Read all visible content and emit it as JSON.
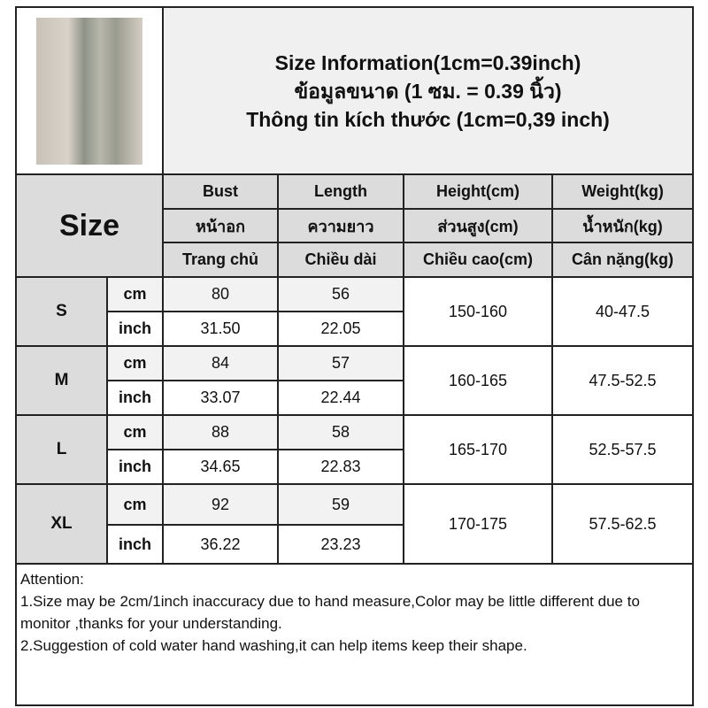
{
  "title_lines": [
    "Size Information(1cm=0.39inch)",
    "ข้อมูลขนาด (1 ซม. = 0.39 นิ้ว)",
    "Thông tin kích thước (1cm=0,39 inch)"
  ],
  "size_label": "Size",
  "headers": [
    [
      "Bust",
      "Length",
      "Height(cm)",
      "Weight(kg)"
    ],
    [
      "หน้าอก",
      "ความยาว",
      "ส่วนสูง(cm)",
      "น้ำหนัก(kg)"
    ],
    [
      "Trang chủ",
      "Chiều dài",
      "Chiều cao(cm)",
      "Cân nặng(kg)"
    ]
  ],
  "rows": [
    {
      "size": "S",
      "cm_label": "cm",
      "inch_label": "inch",
      "bust_cm": "80",
      "length_cm": "56",
      "bust_inch": "31.50",
      "length_inch": "22.05",
      "height": "150-160",
      "weight": "40-47.5"
    },
    {
      "size": "M",
      "cm_label": "cm",
      "inch_label": "inch",
      "bust_cm": "84",
      "length_cm": "57",
      "bust_inch": "33.07",
      "length_inch": "22.44",
      "height": "160-165",
      "weight": "47.5-52.5"
    },
    {
      "size": "L",
      "cm_label": "cm",
      "inch_label": "inch",
      "bust_cm": "88",
      "length_cm": "58",
      "bust_inch": "34.65",
      "length_inch": "22.83",
      "height": "165-170",
      "weight": "52.5-57.5"
    },
    {
      "size": "XL",
      "cm_label": "cm",
      "inch_label": "inch",
      "bust_cm": "92",
      "length_cm": "59",
      "bust_inch": "36.22",
      "length_inch": "23.23",
      "height": "170-175",
      "weight": "57.5-62.5"
    }
  ],
  "attention": [
    "Attention:",
    "1.Size may be 2cm/1inch inaccuracy due to hand measure,Color may be little different due to monitor ,thanks for your understanding.",
    "2.Suggestion of cold water hand washing,it can help items keep their shape."
  ]
}
